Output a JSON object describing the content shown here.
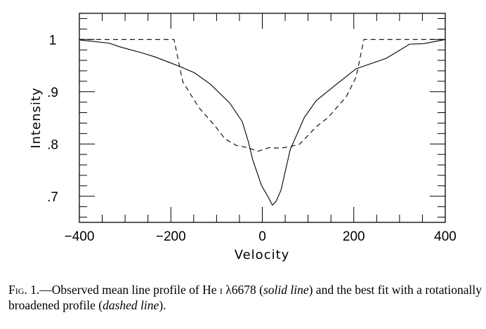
{
  "chart_data": {
    "type": "line",
    "xlabel": "Velocity",
    "ylabel": "Intensity",
    "xlim": [
      -400,
      400
    ],
    "ylim": [
      0.65,
      1.05
    ],
    "xticks": [
      -400,
      -200,
      0,
      200,
      400
    ],
    "xtick_labels": [
      "−400",
      "−200",
      "0",
      "200",
      "400"
    ],
    "yticks": [
      0.7,
      0.8,
      0.9,
      1.0
    ],
    "ytick_labels": [
      ".7",
      ".8",
      ".9",
      "1"
    ],
    "grid": false,
    "series": [
      {
        "style": "solid",
        "x": [
          -400,
          -335,
          -312,
          -266,
          -236,
          -200,
          -174,
          -148,
          -113,
          -71,
          -44,
          -31,
          -21,
          -2,
          12,
          22,
          30,
          41,
          61,
          92,
          118,
          159,
          205,
          271,
          322,
          353,
          400
        ],
        "y": [
          0.999,
          0.993,
          0.986,
          0.975,
          0.967,
          0.955,
          0.946,
          0.936,
          0.914,
          0.878,
          0.843,
          0.806,
          0.77,
          0.721,
          0.7,
          0.683,
          0.69,
          0.712,
          0.789,
          0.851,
          0.883,
          0.912,
          0.944,
          0.964,
          0.991,
          0.992,
          1.0
        ]
      },
      {
        "style": "dashed",
        "x": [
          -400,
          -193,
          -174,
          -139,
          -102,
          -82,
          -56,
          -31,
          -10,
          15,
          40,
          61,
          82,
          118,
          144,
          184,
          205,
          222,
          400
        ],
        "y": [
          1.0,
          1.0,
          0.919,
          0.87,
          0.833,
          0.81,
          0.797,
          0.793,
          0.786,
          0.793,
          0.792,
          0.795,
          0.8,
          0.833,
          0.851,
          0.891,
          0.928,
          1.0,
          1.0
        ]
      }
    ]
  },
  "caption": {
    "fig": "Fig. 1.",
    "text1": "—Observed mean line profile of He ",
    "ion": "i",
    "text2": " λ6678 (",
    "solid": "solid line",
    "text3": ") and the best fit with a rotationally broadened profile (",
    "dashed": "dashed line",
    "text4": ")."
  }
}
